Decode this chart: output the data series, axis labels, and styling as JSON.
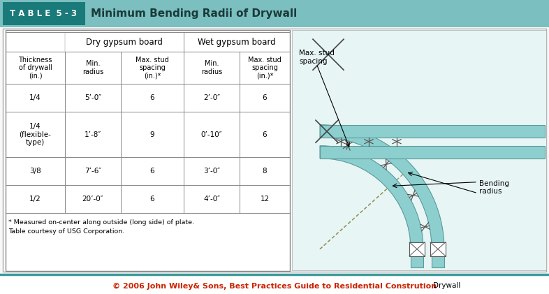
{
  "title_box_label": "T A B L E  5 - 3",
  "title_text": "Minimum Bending Radii of Drywall",
  "title_bg": "#7bbfc0",
  "title_label_bg": "#1a7a7a",
  "header_dry": "Dry gypsum board",
  "header_wet": "Wet gypsum board",
  "header_row2": [
    "Thickness\nof drywall\n(in.)",
    "Min.\nradius",
    "Max. stud\nspacing\n(in.)*",
    "Min.\nradius",
    "Max. stud\nspacing\n(in.)*"
  ],
  "data_rows": [
    [
      "1/4",
      "5’-0″",
      "6",
      "2’-0″",
      "6"
    ],
    [
      "1/4\n(flexible-\ntype)",
      "1’-8″",
      "9",
      "0’-10″",
      "6"
    ],
    [
      "3/8",
      "7’-6″",
      "6",
      "3’-0″",
      "8"
    ],
    [
      "1/2",
      "20’-0″",
      "6",
      "4’-0″",
      "12"
    ]
  ],
  "footnote1": "* Measured on-center along outside (long side) of plate.",
  "footnote2": "Table courtesy of USG Corporation.",
  "footer_text": "© 2006 John Wiley& Sons, Best Practices Guide to Residential Constrution",
  "footer_bg": "#ffffff",
  "footer_line_color": "#3a9a9a",
  "teal_band": "#8dcfcf",
  "teal_light": "#b8e4e4",
  "diag_bg": "#e8f5f5",
  "stud_color": "#555555",
  "dashed_color": "#999966",
  "label_color": "#333333"
}
